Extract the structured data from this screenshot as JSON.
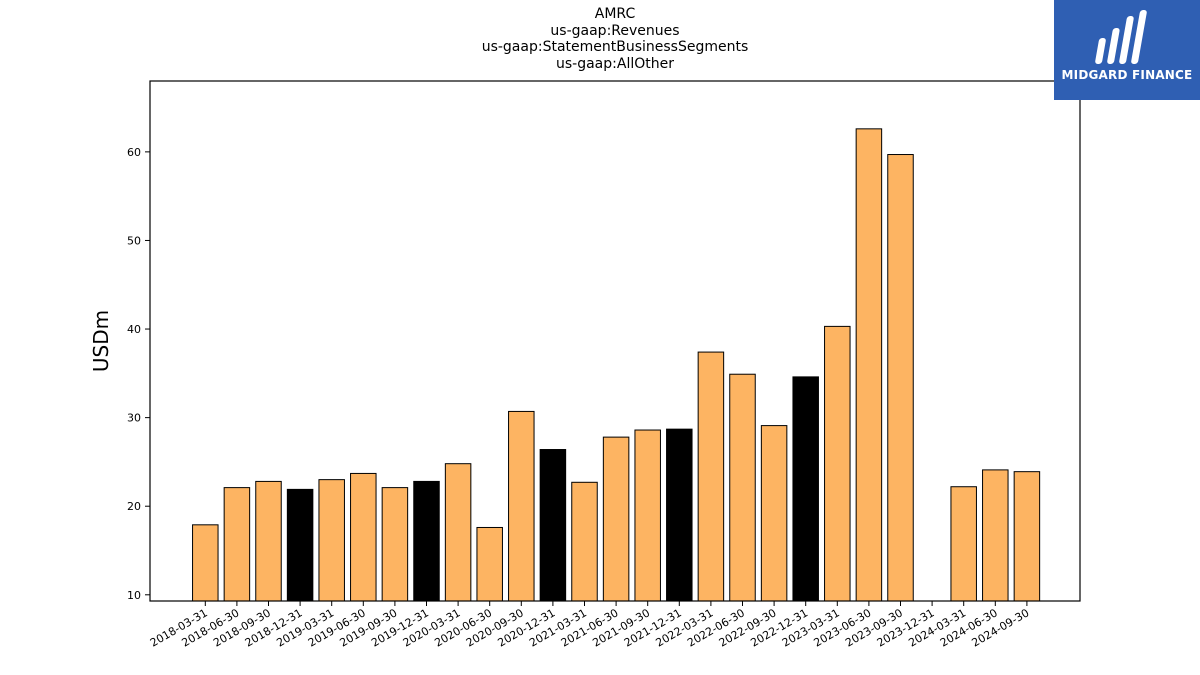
{
  "chart_data": {
    "type": "bar",
    "title_lines": [
      "AMRC",
      "us-gaap:Revenues",
      "us-gaap:StatementBusinessSegments",
      "us-gaap:AllOther"
    ],
    "xlabel": "",
    "ylabel": "USDm",
    "ylim": [
      9.3,
      68
    ],
    "yticks": [
      10,
      20,
      30,
      40,
      50,
      60
    ],
    "grid": false,
    "categories": [
      "2018-03-31",
      "2018-06-30",
      "2018-09-30",
      "2018-12-31",
      "2019-03-31",
      "2019-06-30",
      "2019-09-30",
      "2019-12-31",
      "2020-03-31",
      "2020-06-30",
      "2020-09-30",
      "2020-12-31",
      "2021-03-31",
      "2021-06-30",
      "2021-09-30",
      "2021-12-31",
      "2022-03-31",
      "2022-06-30",
      "2022-09-30",
      "2022-12-31",
      "2023-03-31",
      "2023-06-30",
      "2023-09-30",
      "2023-12-31",
      "2024-03-31",
      "2024-06-30",
      "2024-09-30"
    ],
    "values": [
      17.9,
      22.1,
      22.8,
      21.9,
      23.0,
      23.7,
      22.1,
      22.8,
      24.8,
      17.6,
      30.7,
      26.4,
      22.7,
      27.8,
      28.6,
      28.7,
      37.4,
      34.9,
      29.1,
      34.6,
      40.3,
      62.6,
      59.7,
      null,
      22.2,
      24.1,
      23.9
    ],
    "highlight": [
      false,
      false,
      false,
      true,
      false,
      false,
      false,
      true,
      false,
      false,
      false,
      true,
      false,
      false,
      false,
      true,
      false,
      false,
      false,
      true,
      false,
      false,
      false,
      false,
      false,
      false,
      false
    ],
    "colors": {
      "bar": "#fdb462",
      "highlight": "#000000",
      "edge": "#000000"
    }
  },
  "logo": {
    "text": "MIDGARD FINANCE",
    "background": "#2f5fb3",
    "icon": "midgard-logo-icon"
  }
}
